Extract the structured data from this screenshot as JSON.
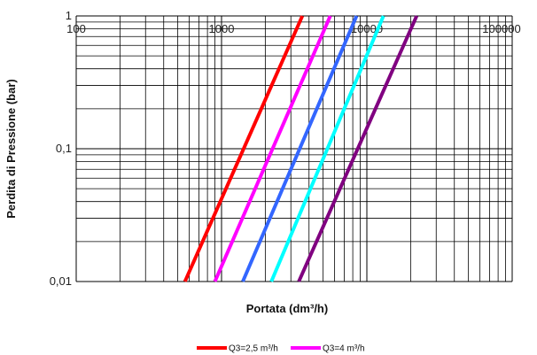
{
  "chart_data": {
    "type": "line",
    "xlabel": "Portata (dm³/h)",
    "ylabel": "Perdita di Pressione (bar)",
    "x_scale": "log",
    "y_scale": "log",
    "xlim": [
      100,
      100000
    ],
    "ylim": [
      0.01,
      1
    ],
    "x_ticks": [
      {
        "value": 100,
        "label": "100"
      },
      {
        "value": 1000,
        "label": "1000"
      },
      {
        "value": 10000,
        "label": "10000"
      },
      {
        "value": 100000,
        "label": "100000"
      }
    ],
    "y_ticks": [
      {
        "value": 1,
        "label": "1"
      },
      {
        "value": 0.1,
        "label": "0,1"
      },
      {
        "value": 0.01,
        "label": "0,01"
      }
    ],
    "grid": true,
    "legend": "bottom",
    "series": [
      {
        "name": "Q3=2,5 m³/h",
        "color": "#ff0000",
        "points": [
          [
            560,
            0.01
          ],
          [
            3600,
            1
          ]
        ]
      },
      {
        "name": "Q3=4 m³/h",
        "color": "#ff00ff",
        "points": [
          [
            900,
            0.01
          ],
          [
            5600,
            1
          ]
        ]
      },
      {
        "name": "",
        "color": "#3366ff",
        "points": [
          [
            1400,
            0.01
          ],
          [
            8500,
            1
          ]
        ]
      },
      {
        "name": "",
        "color": "#00ffff",
        "points": [
          [
            2200,
            0.01
          ],
          [
            13000,
            1
          ]
        ]
      },
      {
        "name": "",
        "color": "#800080",
        "points": [
          [
            3400,
            0.01
          ],
          [
            22000,
            1
          ]
        ]
      }
    ]
  }
}
